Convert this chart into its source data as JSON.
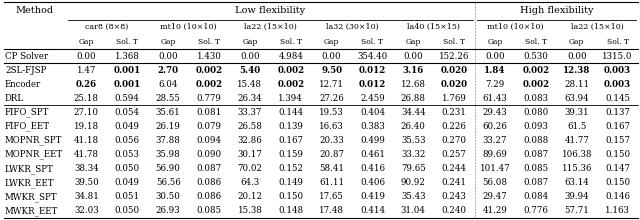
{
  "sub_groups": [
    "car8 (8×8)",
    "mt10 (10×10)",
    "la22 (15×10)",
    "la32 (30×10)",
    "la40 (15×15)",
    "mt10 (10×10)",
    "la22 (15×10)"
  ],
  "col_headers": [
    "Gap",
    "Sol. T",
    "Gap",
    "Sol. T",
    "Gap",
    "Sol. T",
    "Gap",
    "Sol. T",
    "Gap",
    "Sol. T",
    "Gap",
    "Sol. T",
    "Gap",
    "Sol. T"
  ],
  "methods": [
    "CP Solver",
    "2SL-FJSP",
    "Encoder",
    "DRL",
    "FIFO_SPT",
    "FIFO_EET",
    "MOPNR_SPT",
    "MOPNR_EET",
    "LWKR_SPT",
    "LWKR_EET",
    "MWKR_SPT",
    "MWKR_EET"
  ],
  "data": [
    [
      "0.00",
      "1.368",
      "0.00",
      "1.430",
      "0.00",
      "4.984",
      "0.00",
      "354.40",
      "0.00",
      "152.26",
      "0.00",
      "0.530",
      "0.00",
      "1315.0"
    ],
    [
      "1.47",
      "0.001",
      "2.70",
      "0.002",
      "5.40",
      "0.002",
      "9.50",
      "0.012",
      "3.16",
      "0.020",
      "1.84",
      "0.002",
      "12.38",
      "0.003"
    ],
    [
      "0.26",
      "0.001",
      "6.04",
      "0.002",
      "15.48",
      "0.002",
      "12.71",
      "0.012",
      "12.68",
      "0.020",
      "7.29",
      "0.002",
      "28.11",
      "0.003"
    ],
    [
      "25.18",
      "0.594",
      "28.55",
      "0.779",
      "26.34",
      "1.394",
      "27.26",
      "2.459",
      "26.88",
      "1.769",
      "61.43",
      "0.083",
      "63.94",
      "0.145"
    ],
    [
      "27.10",
      "0.054",
      "35.61",
      "0.081",
      "33.37",
      "0.144",
      "19.53",
      "0.404",
      "34.44",
      "0.231",
      "29.43",
      "0.080",
      "39.31",
      "0.137"
    ],
    [
      "19.18",
      "0.049",
      "26.19",
      "0.079",
      "26.58",
      "0.139",
      "16.63",
      "0.383",
      "26.40",
      "0.226",
      "60.26",
      "0.093",
      "61.5",
      "0.167"
    ],
    [
      "41.18",
      "0.056",
      "37.88",
      "0.094",
      "32.86",
      "0.167",
      "20.33",
      "0.499",
      "35.53",
      "0.270",
      "33.27",
      "0.088",
      "41.77",
      "0.157"
    ],
    [
      "41.78",
      "0.053",
      "35.98",
      "0.090",
      "30.17",
      "0.159",
      "20.87",
      "0.461",
      "33.32",
      "0.257",
      "89.69",
      "0.087",
      "106.38",
      "0.150"
    ],
    [
      "38.34",
      "0.050",
      "56.90",
      "0.087",
      "70.02",
      "0.152",
      "58.41",
      "0.416",
      "79.65",
      "0.244",
      "101.47",
      "0.085",
      "115.36",
      "0.147"
    ],
    [
      "39.50",
      "0.049",
      "56.56",
      "0.086",
      "64.3",
      "0.149",
      "61.11",
      "0.406",
      "90.92",
      "0.241",
      "56.08",
      "0.087",
      "63.14",
      "0.150"
    ],
    [
      "34.81",
      "0.051",
      "30.50",
      "0.086",
      "20.12",
      "0.150",
      "17.65",
      "0.419",
      "35.43",
      "0.243",
      "29.47",
      "0.084",
      "39.94",
      "0.146"
    ],
    [
      "32.03",
      "0.050",
      "26.93",
      "0.085",
      "15.38",
      "0.148",
      "17.48",
      "0.414",
      "31.04",
      "0.240",
      "41.29",
      "0.776",
      "57.71",
      "1.163"
    ]
  ],
  "bold_cells": {
    "1": [
      1,
      2,
      3,
      4,
      5,
      6,
      7,
      8,
      9,
      10,
      11,
      12,
      13
    ],
    "2": [
      0,
      1,
      3,
      5,
      7,
      9,
      11,
      13
    ]
  },
  "bg_color": "#ffffff",
  "font_size": 6.2,
  "fs_header": 6.5,
  "fs_group": 7.0
}
